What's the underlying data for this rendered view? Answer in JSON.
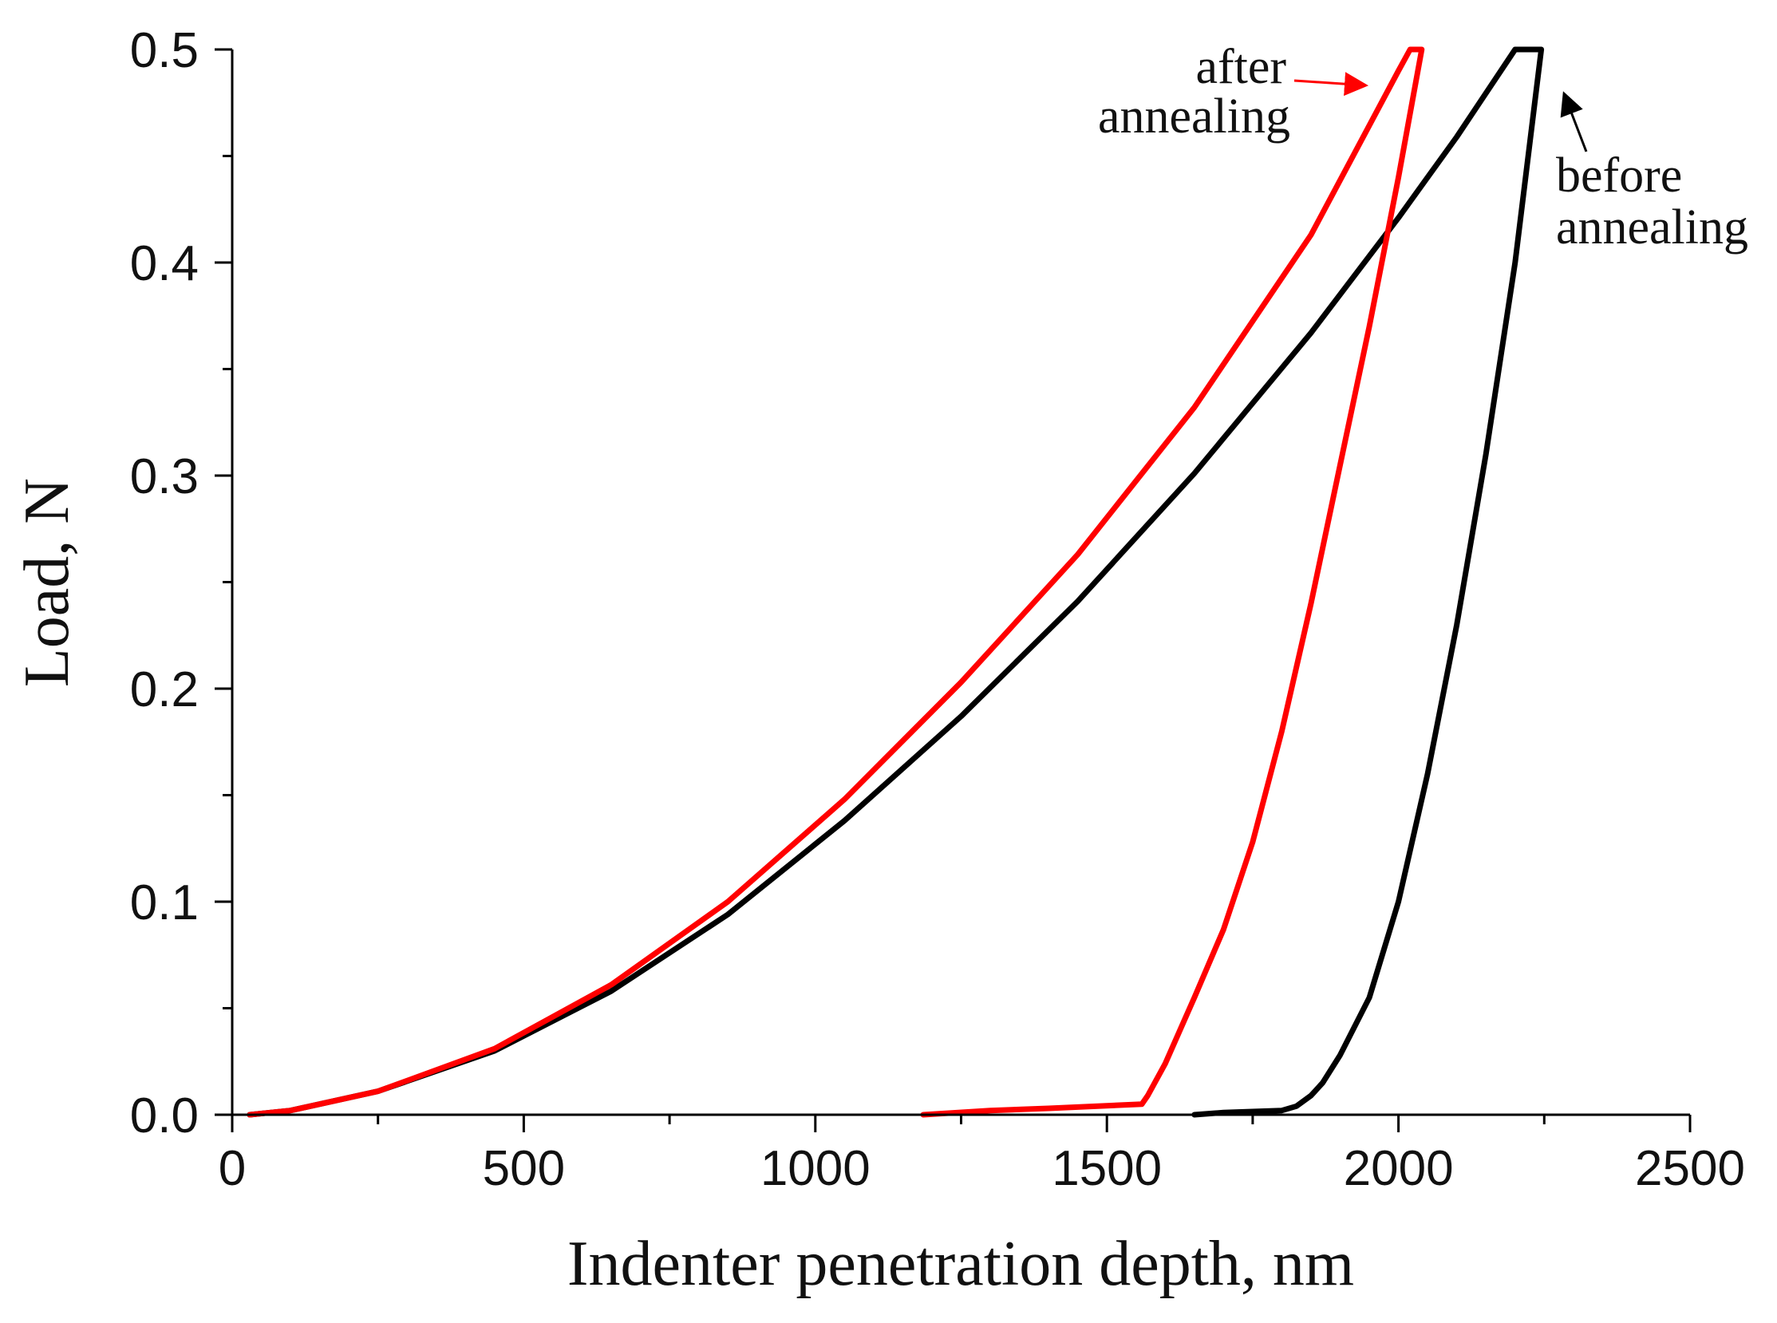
{
  "chart_data": {
    "type": "line",
    "title": "",
    "xlabel": "Indenter penetration depth, nm",
    "ylabel": "Load, N",
    "xlim": [
      0,
      2500
    ],
    "ylim": [
      0,
      0.5
    ],
    "x_ticks": [
      0,
      500,
      1000,
      1500,
      2000,
      2500
    ],
    "x_tick_labels": [
      "0",
      "500",
      "1000",
      "1500",
      "2000",
      "2500"
    ],
    "y_ticks": [
      0,
      0.1,
      0.2,
      0.3,
      0.4,
      0.5
    ],
    "y_tick_labels": [
      "0.0",
      "0.1",
      "0.2",
      "0.3",
      "0.4",
      "0.5"
    ],
    "grid": false,
    "series": [
      {
        "name": "before annealing",
        "color": "#000000",
        "x": [
          30,
          100,
          250,
          450,
          650,
          850,
          1050,
          1250,
          1450,
          1650,
          1850,
          2000,
          2100,
          2200,
          2220,
          2245,
          2200,
          2150,
          2100,
          2050,
          2000,
          1950,
          1900,
          1870,
          1850,
          1825,
          1800,
          1700,
          1650
        ],
        "y": [
          0,
          0.002,
          0.011,
          0.03,
          0.058,
          0.094,
          0.138,
          0.187,
          0.241,
          0.301,
          0.367,
          0.421,
          0.459,
          0.5,
          0.5,
          0.5,
          0.4,
          0.31,
          0.23,
          0.16,
          0.1,
          0.055,
          0.028,
          0.015,
          0.009,
          0.004,
          0.002,
          0.001,
          0
        ]
      },
      {
        "name": "after annealing",
        "color": "#ff0000",
        "x": [
          30,
          100,
          250,
          450,
          650,
          850,
          1050,
          1250,
          1450,
          1650,
          1850,
          2000,
          2020,
          2040,
          2000,
          1950,
          1900,
          1850,
          1800,
          1750,
          1700,
          1650,
          1600,
          1570,
          1560,
          1400,
          1300,
          1185
        ],
        "y": [
          0,
          0.002,
          0.011,
          0.031,
          0.061,
          0.1,
          0.148,
          0.203,
          0.263,
          0.332,
          0.413,
          0.49,
          0.5,
          0.5,
          0.44,
          0.37,
          0.305,
          0.24,
          0.18,
          0.128,
          0.087,
          0.055,
          0.024,
          0.009,
          0.005,
          0.003,
          0.002,
          0
        ]
      }
    ],
    "annotations": [
      {
        "text_lines": [
          "after",
          "annealing"
        ],
        "color": "#ff0000",
        "points_to": [
          2020,
          0.5
        ]
      },
      {
        "text_lines": [
          "before",
          "annealing"
        ],
        "color": "#000000",
        "points_to": [
          2245,
          0.5
        ]
      }
    ]
  }
}
